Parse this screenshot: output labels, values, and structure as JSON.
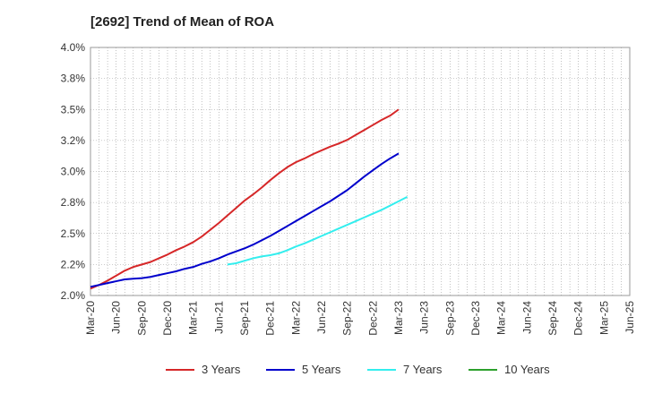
{
  "chart_data": {
    "type": "line",
    "title": "[2692]  Trend of Mean of ROA",
    "xlabel": "",
    "ylabel": "",
    "ylim": [
      2.0,
      4.0
    ],
    "y_ticks": [
      "4.0%",
      "3.8%",
      "3.5%",
      "3.2%",
      "3.0%",
      "2.8%",
      "2.5%",
      "2.2%",
      "2.0%"
    ],
    "x_ticks": [
      "Mar-20",
      "Jun-20",
      "Sep-20",
      "Dec-20",
      "Mar-21",
      "Jun-21",
      "Sep-21",
      "Dec-21",
      "Mar-22",
      "Jun-22",
      "Sep-22",
      "Dec-22",
      "Mar-23",
      "Jun-23",
      "Sep-23",
      "Dec-23",
      "Mar-24",
      "Jun-24",
      "Sep-24",
      "Dec-24",
      "Mar-25",
      "Jun-25"
    ],
    "grid": true,
    "legend_position": "bottom",
    "series": [
      {
        "name": "3 Years",
        "color": "#d62728",
        "start_index": 0,
        "values": [
          2.055,
          2.085,
          2.12,
          2.16,
          2.2,
          2.23,
          2.25,
          2.27,
          2.3,
          2.33,
          2.365,
          2.395,
          2.43,
          2.475,
          2.53,
          2.585,
          2.645,
          2.705,
          2.765,
          2.815,
          2.87,
          2.93,
          2.985,
          3.035,
          3.075,
          3.105,
          3.14,
          3.17,
          3.2,
          3.225,
          3.255,
          3.295,
          3.335,
          3.375,
          3.415,
          3.45,
          3.5
        ]
      },
      {
        "name": "5 Years",
        "color": "#0000cc",
        "start_index": 0,
        "values": [
          2.07,
          2.085,
          2.1,
          2.115,
          2.13,
          2.135,
          2.14,
          2.15,
          2.165,
          2.18,
          2.195,
          2.215,
          2.23,
          2.255,
          2.275,
          2.3,
          2.33,
          2.355,
          2.38,
          2.41,
          2.445,
          2.48,
          2.52,
          2.56,
          2.6,
          2.64,
          2.68,
          2.72,
          2.76,
          2.805,
          2.85,
          2.905,
          2.96,
          3.01,
          3.06,
          3.105,
          3.145
        ]
      },
      {
        "name": "7 Years",
        "color": "#33eeee",
        "start_index": 16,
        "values": [
          2.25,
          2.26,
          2.28,
          2.3,
          2.315,
          2.325,
          2.34,
          2.365,
          2.395,
          2.42,
          2.45,
          2.48,
          2.51,
          2.54,
          2.57,
          2.6,
          2.63,
          2.66,
          2.69,
          2.725,
          2.76,
          2.795
        ]
      },
      {
        "name": "10 Years",
        "color": "#2ca02c",
        "start_index": 0,
        "values": []
      }
    ]
  }
}
